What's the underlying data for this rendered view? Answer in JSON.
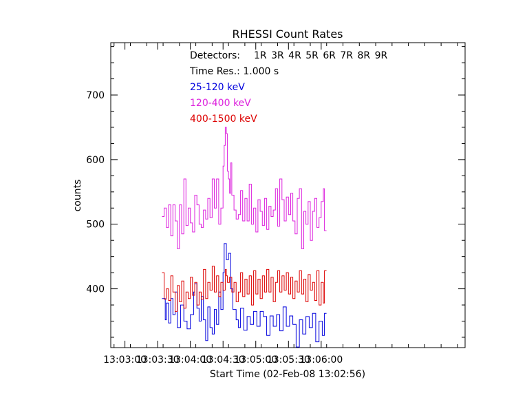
{
  "chart_data": {
    "type": "line",
    "title": "RHESSI Count Rates",
    "xlabel": "Start Time (02-Feb-08 13:02:56)",
    "ylabel": "counts",
    "x_start": "13:02:56",
    "xlim": [
      -9,
      316
    ],
    "ylim": [
      309,
      781
    ],
    "xticks": [
      {
        "t": 4,
        "label": "13:03:00"
      },
      {
        "t": 34,
        "label": "13:03:30"
      },
      {
        "t": 64,
        "label": "13:04:00"
      },
      {
        "t": 94,
        "label": "13:04:30"
      },
      {
        "t": 124,
        "label": "13:05:00"
      },
      {
        "t": 154,
        "label": "13:05:30"
      },
      {
        "t": 184,
        "label": "13:06:00"
      }
    ],
    "yticks": [
      400,
      500,
      600,
      700
    ],
    "annotations": {
      "detectors_label": "Detectors:",
      "detectors": "1R 3R 4R 5R 6R 7R 8R 9R",
      "time_res": "Time Res.: 1.000 s"
    },
    "series": [
      {
        "name": "25-120 keV",
        "color": "#0000dd",
        "points": [
          [
            38,
            385
          ],
          [
            41,
            352
          ],
          [
            42,
            378
          ],
          [
            44,
            347
          ],
          [
            46,
            385
          ],
          [
            48,
            360
          ],
          [
            50,
            395
          ],
          [
            52,
            340
          ],
          [
            55,
            375
          ],
          [
            58,
            350
          ],
          [
            61,
            338
          ],
          [
            64,
            360
          ],
          [
            67,
            395
          ],
          [
            68,
            408
          ],
          [
            70,
            370
          ],
          [
            72,
            350
          ],
          [
            74,
            388
          ],
          [
            76,
            352
          ],
          [
            78,
            320
          ],
          [
            80,
            372
          ],
          [
            82,
            340
          ],
          [
            84,
            330
          ],
          [
            86,
            368
          ],
          [
            88,
            345
          ],
          [
            90,
            395
          ],
          [
            92,
            368
          ],
          [
            94,
            425
          ],
          [
            95,
            470
          ],
          [
            97,
            445
          ],
          [
            99,
            455
          ],
          [
            101,
            400
          ],
          [
            103,
            368
          ],
          [
            106,
            352
          ],
          [
            108,
            340
          ],
          [
            110,
            370
          ],
          [
            113,
            336
          ],
          [
            116,
            357
          ],
          [
            119,
            345
          ],
          [
            122,
            365
          ],
          [
            125,
            342
          ],
          [
            128,
            365
          ],
          [
            131,
            357
          ],
          [
            134,
            328
          ],
          [
            137,
            358
          ],
          [
            140,
            342
          ],
          [
            143,
            360
          ],
          [
            146,
            335
          ],
          [
            149,
            372
          ],
          [
            152,
            342
          ],
          [
            155,
            358
          ],
          [
            158,
            345
          ],
          [
            161,
            310
          ],
          [
            164,
            352
          ],
          [
            167,
            330
          ],
          [
            170,
            357
          ],
          [
            173,
            340
          ],
          [
            176,
            362
          ],
          [
            179,
            318
          ],
          [
            182,
            350
          ],
          [
            185,
            328
          ],
          [
            187,
            362
          ]
        ]
      },
      {
        "name": "120-400 keV",
        "color": "#dd22dd",
        "points": [
          [
            38,
            512
          ],
          [
            40,
            525
          ],
          [
            42,
            495
          ],
          [
            44,
            530
          ],
          [
            46,
            482
          ],
          [
            48,
            530
          ],
          [
            50,
            505
          ],
          [
            52,
            462
          ],
          [
            54,
            530
          ],
          [
            56,
            485
          ],
          [
            58,
            570
          ],
          [
            60,
            498
          ],
          [
            62,
            525
          ],
          [
            64,
            502
          ],
          [
            66,
            488
          ],
          [
            68,
            545
          ],
          [
            70,
            530
          ],
          [
            72,
            500
          ],
          [
            74,
            495
          ],
          [
            76,
            522
          ],
          [
            78,
            508
          ],
          [
            80,
            540
          ],
          [
            82,
            510
          ],
          [
            84,
            570
          ],
          [
            86,
            525
          ],
          [
            88,
            570
          ],
          [
            90,
            500
          ],
          [
            92,
            525
          ],
          [
            94,
            590
          ],
          [
            95,
            622
          ],
          [
            96,
            650
          ],
          [
            97,
            640
          ],
          [
            98,
            582
          ],
          [
            99,
            570
          ],
          [
            100,
            548
          ],
          [
            101,
            595
          ],
          [
            102,
            545
          ],
          [
            104,
            522
          ],
          [
            106,
            508
          ],
          [
            108,
            515
          ],
          [
            110,
            552
          ],
          [
            112,
            505
          ],
          [
            114,
            540
          ],
          [
            116,
            505
          ],
          [
            118,
            562
          ],
          [
            120,
            500
          ],
          [
            122,
            525
          ],
          [
            124,
            488
          ],
          [
            126,
            538
          ],
          [
            128,
            520
          ],
          [
            130,
            498
          ],
          [
            132,
            540
          ],
          [
            134,
            492
          ],
          [
            136,
            528
          ],
          [
            138,
            512
          ],
          [
            140,
            522
          ],
          [
            142,
            555
          ],
          [
            144,
            497
          ],
          [
            146,
            570
          ],
          [
            148,
            538
          ],
          [
            150,
            505
          ],
          [
            152,
            542
          ],
          [
            154,
            515
          ],
          [
            156,
            548
          ],
          [
            158,
            505
          ],
          [
            160,
            485
          ],
          [
            162,
            540
          ],
          [
            164,
            555
          ],
          [
            166,
            462
          ],
          [
            168,
            520
          ],
          [
            170,
            500
          ],
          [
            172,
            535
          ],
          [
            174,
            475
          ],
          [
            176,
            520
          ],
          [
            178,
            540
          ],
          [
            180,
            495
          ],
          [
            182,
            510
          ],
          [
            184,
            535
          ],
          [
            186,
            555
          ],
          [
            187,
            490
          ]
        ]
      },
      {
        "name": "400-1500 keV",
        "color": "#dd0000",
        "points": [
          [
            38,
            425
          ],
          [
            40,
            384
          ],
          [
            42,
            400
          ],
          [
            44,
            382
          ],
          [
            46,
            420
          ],
          [
            48,
            395
          ],
          [
            50,
            365
          ],
          [
            52,
            405
          ],
          [
            54,
            380
          ],
          [
            56,
            412
          ],
          [
            58,
            370
          ],
          [
            60,
            395
          ],
          [
            62,
            385
          ],
          [
            64,
            418
          ],
          [
            66,
            390
          ],
          [
            68,
            410
          ],
          [
            70,
            375
          ],
          [
            72,
            395
          ],
          [
            74,
            384
          ],
          [
            76,
            430
          ],
          [
            78,
            385
          ],
          [
            80,
            410
          ],
          [
            82,
            398
          ],
          [
            84,
            435
          ],
          [
            86,
            395
          ],
          [
            88,
            420
          ],
          [
            90,
            388
          ],
          [
            92,
            410
          ],
          [
            94,
            398
          ],
          [
            96,
            430
          ],
          [
            97,
            420
          ],
          [
            98,
            410
          ],
          [
            100,
            418
          ],
          [
            102,
            395
          ],
          [
            104,
            410
          ],
          [
            106,
            380
          ],
          [
            108,
            395
          ],
          [
            110,
            425
          ],
          [
            112,
            388
          ],
          [
            114,
            415
          ],
          [
            116,
            392
          ],
          [
            118,
            420
          ],
          [
            120,
            375
          ],
          [
            122,
            428
          ],
          [
            124,
            392
          ],
          [
            126,
            415
          ],
          [
            128,
            385
          ],
          [
            130,
            420
          ],
          [
            132,
            395
          ],
          [
            134,
            430
          ],
          [
            136,
            395
          ],
          [
            138,
            418
          ],
          [
            140,
            380
          ],
          [
            142,
            410
          ],
          [
            144,
            428
          ],
          [
            146,
            395
          ],
          [
            148,
            420
          ],
          [
            150,
            398
          ],
          [
            152,
            425
          ],
          [
            154,
            392
          ],
          [
            156,
            418
          ],
          [
            158,
            385
          ],
          [
            160,
            412
          ],
          [
            162,
            395
          ],
          [
            164,
            428
          ],
          [
            166,
            392
          ],
          [
            168,
            415
          ],
          [
            170,
            380
          ],
          [
            172,
            422
          ],
          [
            174,
            398
          ],
          [
            176,
            410
          ],
          [
            178,
            382
          ],
          [
            180,
            428
          ],
          [
            182,
            375
          ],
          [
            184,
            410
          ],
          [
            186,
            378
          ],
          [
            187,
            428
          ]
        ]
      }
    ]
  }
}
